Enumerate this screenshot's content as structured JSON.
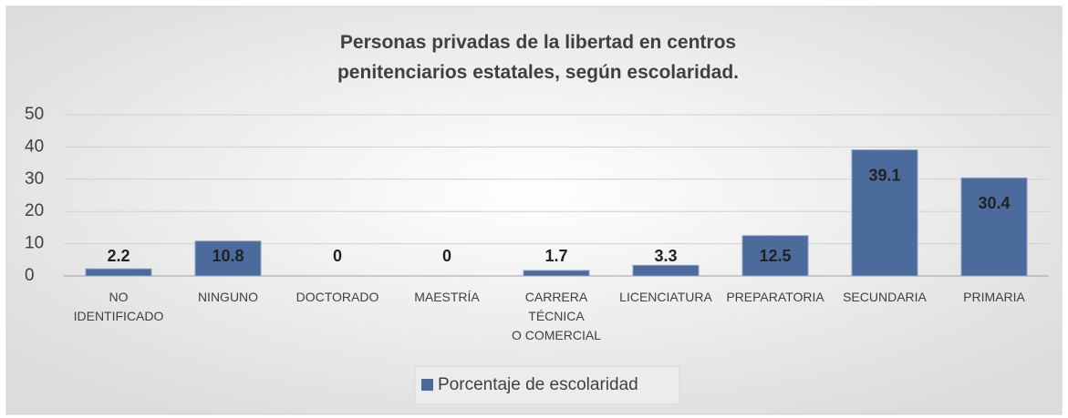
{
  "chart_data": {
    "type": "bar",
    "title": "Personas privadas de la libertad en centros\npenitenciarios estatales, según escolaridad.",
    "categories": [
      "NO\nIDENTIFICADO",
      "NINGUNO",
      "DOCTORADO",
      "MAESTRÍA",
      "CARRERA\nTÉCNICA\nO COMERCIAL",
      "LICENCIATURA",
      "PREPARATORIA",
      "SECUNDARIA",
      "PRIMARIA"
    ],
    "series": [
      {
        "name": "Porcentaje de escolaridad",
        "color": "#4a6b9c",
        "values": [
          2.2,
          10.8,
          0,
          0,
          1.7,
          3.3,
          12.5,
          39.1,
          30.4
        ]
      }
    ],
    "ylim": [
      0,
      50
    ],
    "yticks": [
      0,
      10,
      20,
      30,
      40,
      50
    ],
    "grid": true,
    "legend": "bottom"
  }
}
